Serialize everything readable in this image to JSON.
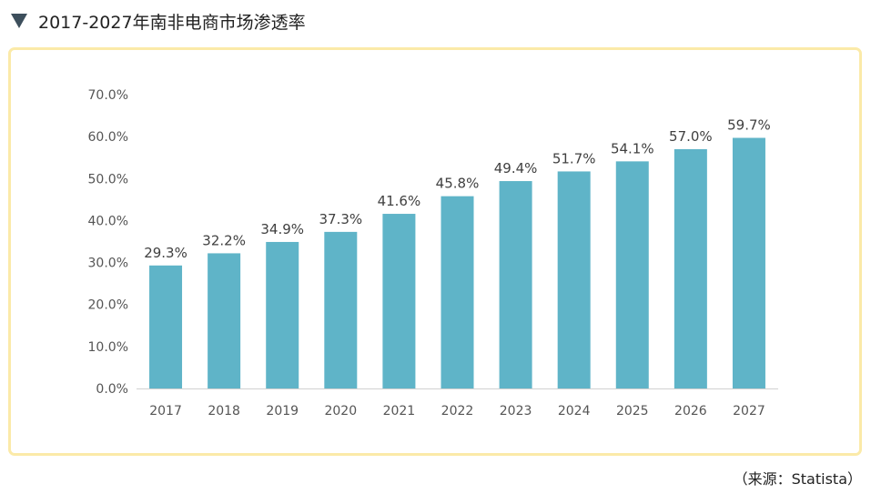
{
  "header": {
    "title": "2017-2027年南非电商市场渗透率"
  },
  "source": "（来源：Statista）",
  "colors": {
    "bar": "#5fb4c8",
    "frame_border": "#fbeaa8",
    "header_icon": "#3d4f5c"
  },
  "chart_data": {
    "type": "bar",
    "categories": [
      "2017",
      "2018",
      "2019",
      "2020",
      "2021",
      "2022",
      "2023",
      "2024",
      "2025",
      "2026",
      "2027"
    ],
    "values": [
      29.3,
      32.2,
      34.9,
      37.3,
      41.6,
      45.8,
      49.4,
      51.7,
      54.1,
      57.0,
      59.7
    ],
    "data_labels": [
      "29.3%",
      "32.2%",
      "34.9%",
      "37.3%",
      "41.6%",
      "45.8%",
      "49.4%",
      "51.7%",
      "54.1%",
      "57.0%",
      "59.7%"
    ],
    "y_ticks": [
      "0.0%",
      "10.0%",
      "20.0%",
      "30.0%",
      "40.0%",
      "50.0%",
      "60.0%",
      "70.0%"
    ],
    "ylim": [
      0,
      70
    ],
    "grid": false,
    "legend": "none"
  }
}
